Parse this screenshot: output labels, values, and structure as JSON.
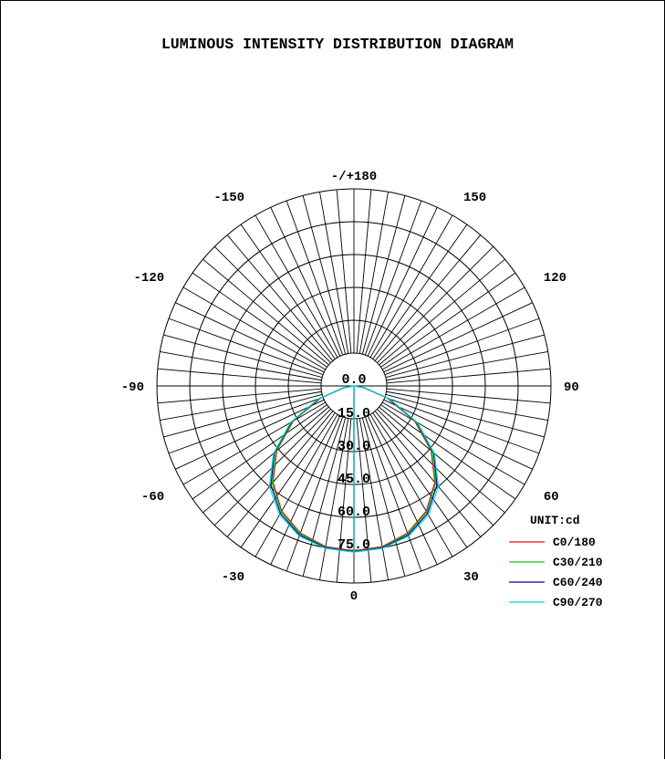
{
  "chart_data": {
    "type": "polar",
    "title": "LUMINOUS INTENSITY DISTRIBUTION DIAGRAM",
    "unit_label": "UNIT:cd",
    "radial_axis": {
      "range": [
        0,
        90
      ],
      "ring_values": [
        15,
        30,
        45,
        60,
        75,
        90
      ],
      "tick_labels": [
        "0.0",
        "15.0",
        "30.0",
        "45.0",
        "60.0",
        "75.0"
      ]
    },
    "angular_axis": {
      "step_degrees": 5,
      "labels": [
        {
          "value": 0,
          "text": "0"
        },
        {
          "value": 30,
          "text": "30"
        },
        {
          "value": 60,
          "text": "60"
        },
        {
          "value": 90,
          "text": "90"
        },
        {
          "value": 120,
          "text": "120"
        },
        {
          "value": 150,
          "text": "150"
        },
        {
          "value": 180,
          "text": "-/+180"
        },
        {
          "value": -150,
          "text": "-150"
        },
        {
          "value": -120,
          "text": "-120"
        },
        {
          "value": -90,
          "text": "-90"
        },
        {
          "value": -60,
          "text": "-60"
        },
        {
          "value": -30,
          "text": "-30"
        }
      ]
    },
    "angles": [
      0,
      10,
      20,
      30,
      40,
      50,
      60,
      70,
      80,
      90
    ],
    "series": [
      {
        "name": "C0/180",
        "color": "#ff0000",
        "values": [
          75.3,
          74.5,
          71.5,
          66.0,
          57.5,
          46.0,
          32.0,
          16.0,
          4.5,
          0.0
        ]
      },
      {
        "name": "C30/210",
        "color": "#00cc00",
        "values": [
          75.6,
          74.8,
          71.9,
          66.4,
          58.0,
          46.5,
          32.5,
          16.5,
          4.5,
          0.0
        ]
      },
      {
        "name": "C60/240",
        "color": "#0000aa",
        "values": [
          75.7,
          75.0,
          72.5,
          67.2,
          59.0,
          47.5,
          33.0,
          17.0,
          5.0,
          0.0
        ]
      },
      {
        "name": "C90/270",
        "color": "#00d8d8",
        "values": [
          75.9,
          75.3,
          73.0,
          68.0,
          60.0,
          48.0,
          33.5,
          17.5,
          5.0,
          0.0
        ]
      }
    ]
  }
}
